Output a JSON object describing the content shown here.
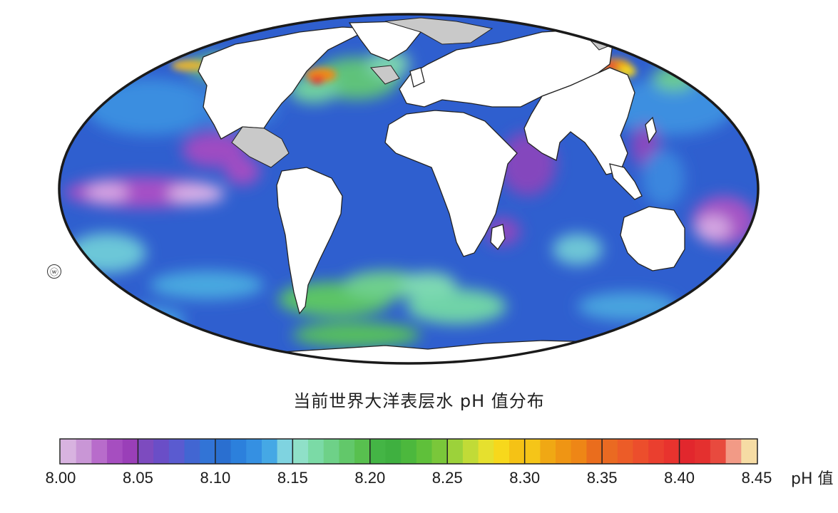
{
  "map": {
    "caption": "当前世界大洋表层水 pH 值分布",
    "marker": "ⓦ",
    "colors": {
      "land": "#ffffff",
      "land_nodata": "#c9c9c9",
      "ocean_base": "#2f5fcf",
      "outline": "#1a1a1a"
    }
  },
  "legend": {
    "unit": "pH 值",
    "ticks": [
      "8.00",
      "8.05",
      "8.10",
      "8.15",
      "8.20",
      "8.25",
      "8.30",
      "8.35",
      "8.40",
      "8.45"
    ],
    "min": 8.0,
    "max": 8.45,
    "swatches": [
      "#d8b3e0",
      "#c996d6",
      "#b86ccb",
      "#a64ec0",
      "#9a3fb8",
      "#7d4bbf",
      "#6a4ec7",
      "#5a5bd0",
      "#4266d2",
      "#3274d6",
      "#2a6fd0",
      "#2c80dc",
      "#3590e2",
      "#45a8e5",
      "#7fd3e0",
      "#8fe0c8",
      "#7bdaa6",
      "#6ed188",
      "#62c86a",
      "#58c04f",
      "#44b545",
      "#3fb040",
      "#4cb83d",
      "#5fc03a",
      "#7ac73a",
      "#9cd23a",
      "#c1db37",
      "#e6e02e",
      "#f7d81c",
      "#f5c215",
      "#f5c518",
      "#f0a814",
      "#ef9514",
      "#ee8616",
      "#ea6d1d",
      "#ea6a22",
      "#ec5c28",
      "#ec4e2c",
      "#ea3f2f",
      "#e8332e",
      "#e2272d",
      "#e4302f",
      "#e84a3e",
      "#f29a86",
      "#f6dca4"
    ]
  }
}
